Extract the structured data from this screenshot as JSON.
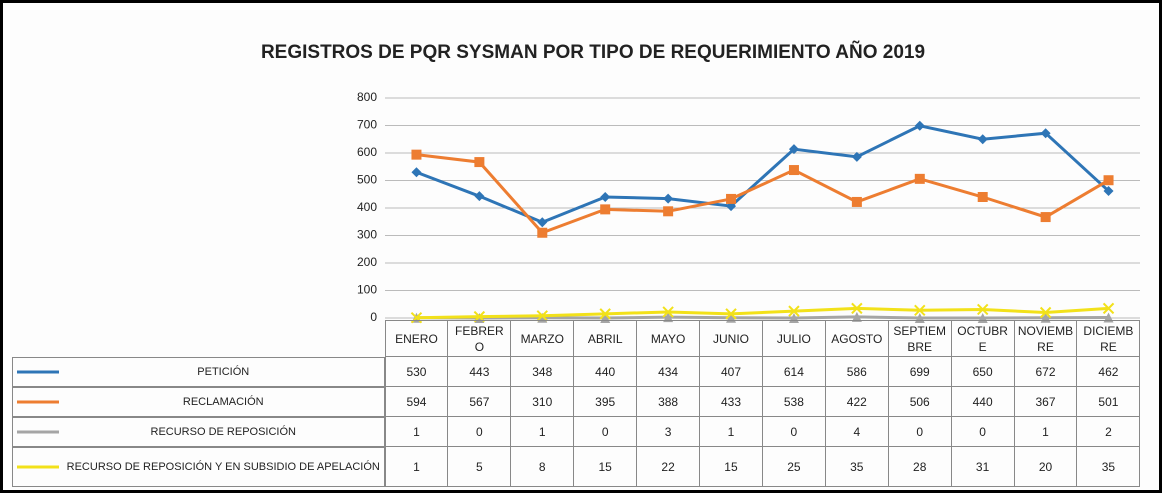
{
  "chart_data": {
    "type": "line",
    "title": "REGISTROS DE PQR SYSMAN  POR TIPO DE REQUERIMIENTO AÑO 2019",
    "categories": [
      "ENERO",
      "FEBRERO",
      "MARZO",
      "ABRIL",
      "MAYO",
      "JUNIO",
      "JULIO",
      "AGOSTO",
      "SEPTIEMBRE",
      "OCTUBRE",
      "NOVIEMBRE",
      "DICIEMBRE"
    ],
    "series": [
      {
        "name": "PETICIÓN",
        "color": "#2e75b6",
        "marker": "diamond",
        "values": [
          530,
          443,
          348,
          440,
          434,
          407,
          614,
          586,
          699,
          650,
          672,
          462
        ]
      },
      {
        "name": "RECLAMACIÓN",
        "color": "#ed7d31",
        "marker": "square",
        "values": [
          594,
          567,
          310,
          395,
          388,
          433,
          538,
          422,
          506,
          440,
          367,
          501
        ]
      },
      {
        "name": "RECURSO DE REPOSICIÓN",
        "color": "#a5a5a5",
        "marker": "triangle",
        "values": [
          1,
          0,
          1,
          0,
          3,
          1,
          0,
          4,
          0,
          0,
          1,
          2
        ]
      },
      {
        "name": "RECURSO DE REPOSICIÓN Y EN SUBSIDIO DE APELACIÓN",
        "color": "#f2e11a",
        "marker": "cross",
        "values": [
          1,
          5,
          8,
          15,
          22,
          15,
          25,
          35,
          28,
          31,
          20,
          35
        ]
      }
    ],
    "ylim": [
      0,
      800
    ],
    "yticks": [
      0,
      100,
      200,
      300,
      400,
      500,
      600,
      700,
      800
    ],
    "grid": true
  }
}
